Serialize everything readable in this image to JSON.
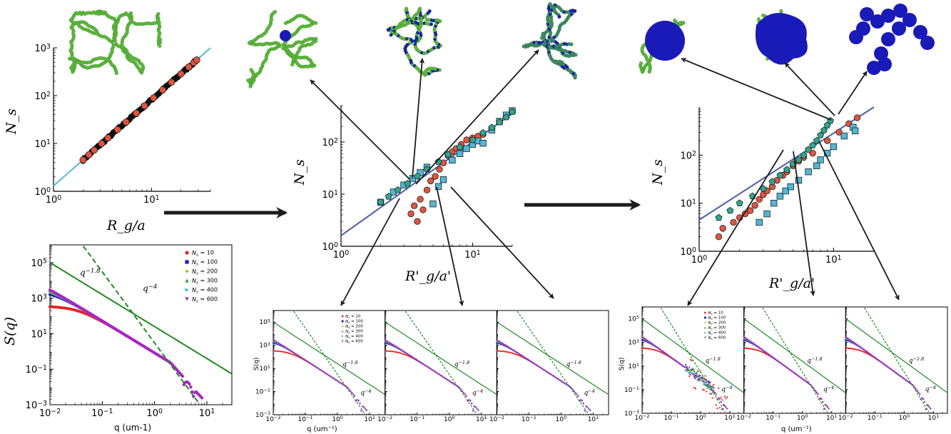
{
  "figure": {
    "panel_a": {
      "ylabel": "N_s",
      "xlabel": "R_g/a",
      "xticks": [
        "10^0",
        "10^1"
      ],
      "yticks": [
        "10^0",
        "10^1",
        "10^2",
        "10^3"
      ]
    },
    "panel_b": {
      "ylabel": "N_s",
      "xlabel": "R'_g/a'",
      "xticks": [
        "10^0",
        "10^1"
      ],
      "yticks": [
        "10^0",
        "10^1",
        "10^2"
      ]
    },
    "panel_c": {
      "ylabel": "N_s",
      "xlabel": "R'_g/a'",
      "xticks": [
        "10^0",
        "10^1"
      ],
      "yticks": [
        "10^0",
        "10^1",
        "10^2"
      ]
    },
    "scattering": {
      "ylabel": "S(q)",
      "xlabel": "q (um-1)",
      "xlabel_small": "q (um⁻¹)",
      "xticks": [
        "10^-2",
        "10^-1",
        "10^0",
        "10^1"
      ],
      "yticks": [
        "10^-3",
        "10^-1",
        "10^1",
        "10^3",
        "10^5"
      ],
      "slope_shallow": "q^-1.8",
      "slope_steep": "q^-4"
    },
    "legend": [
      "N_s = 10",
      "N_s = 100",
      "N_s = 200",
      "N_s = 300",
      "N_s = 400",
      "N_s = 600"
    ],
    "colors": {
      "series": [
        "#e8231e",
        "#1818e0",
        "#a6c41a",
        "#2a9c2a",
        "#19bfdc",
        "#b021c8"
      ],
      "fit_line": "#58b8d8",
      "fit_line_dark": "#4a5fa8",
      "circle_fill": "#e05440",
      "square_fill": "#52b6d6",
      "pentagon_fill": "#2ea690",
      "power_law": "#1f8a1f",
      "cluster": "#5dbb3c",
      "blob": "#1a1ab8"
    }
  },
  "chart_data": [
    {
      "type": "scatter",
      "panel": "a",
      "xlabel": "R_g/a",
      "ylabel": "N_s",
      "xscale": "log",
      "yscale": "log",
      "xlim": [
        1,
        40
      ],
      "ylim": [
        1,
        1000
      ],
      "series": [
        {
          "values": [
            [
              2.0,
              4
            ],
            [
              2.3,
              5
            ],
            [
              2.6,
              6
            ],
            [
              3.1,
              8
            ],
            [
              3.6,
              10
            ],
            [
              4.5,
              15
            ],
            [
              5.5,
              22
            ],
            [
              7,
              35
            ],
            [
              8.5,
              50
            ],
            [
              10.5,
              75
            ],
            [
              13,
              110
            ],
            [
              16,
              170
            ],
            [
              20,
              270
            ],
            [
              24,
              400
            ],
            [
              27,
              500
            ],
            [
              29,
              600
            ]
          ]
        }
      ],
      "fit": {
        "slope": 1.8,
        "intercept_at_x1": 1.3
      }
    },
    {
      "type": "scatter",
      "panel": "b",
      "xlabel": "R'_g/a'",
      "ylabel": "N_s",
      "xscale": "log",
      "yscale": "log",
      "xlim": [
        1,
        20
      ],
      "ylim": [
        1,
        500
      ],
      "series": [
        {
          "marker": "circle",
          "values": [
            [
              3.4,
              4.2
            ],
            [
              3.6,
              6
            ],
            [
              3.8,
              3
            ],
            [
              4.0,
              8
            ],
            [
              4.2,
              5
            ],
            [
              4.5,
              12
            ],
            [
              4.8,
              18
            ],
            [
              5.2,
              22
            ],
            [
              5.6,
              30
            ],
            [
              6.0,
              40
            ],
            [
              6.5,
              55
            ],
            [
              7.0,
              65
            ],
            [
              7.5,
              75
            ],
            [
              8.2,
              90
            ],
            [
              9,
              110
            ],
            [
              10,
              120
            ],
            [
              11,
              130
            ],
            [
              12,
              140
            ]
          ]
        },
        {
          "marker": "square",
          "values": [
            [
              2.0,
              7
            ],
            [
              2.5,
              11
            ],
            [
              3.0,
              15
            ],
            [
              3.5,
              20
            ],
            [
              4.0,
              26
            ],
            [
              4.5,
              33
            ],
            [
              5.0,
              6.5
            ],
            [
              5.5,
              14
            ],
            [
              6,
              19
            ],
            [
              7,
              45
            ],
            [
              8,
              60
            ],
            [
              9,
              75
            ],
            [
              10,
              90
            ],
            [
              11,
              105
            ],
            [
              12,
              95
            ],
            [
              14,
              170
            ],
            [
              16,
              250
            ],
            [
              18,
              330
            ],
            [
              20,
              400
            ]
          ]
        },
        {
          "marker": "pentagon",
          "values": [
            [
              2.0,
              7
            ],
            [
              2.3,
              9
            ],
            [
              2.7,
              12
            ],
            [
              3.2,
              16
            ],
            [
              3.8,
              22
            ],
            [
              4.5,
              30
            ],
            [
              5.5,
              42
            ],
            [
              6.5,
              58
            ],
            [
              8,
              80
            ],
            [
              10,
              110
            ],
            [
              12,
              150
            ],
            [
              14,
              190
            ],
            [
              16,
              240
            ],
            [
              18,
              300
            ],
            [
              20,
              380
            ]
          ]
        }
      ],
      "fit": {
        "slope": 1.8,
        "intercept_at_x1": 1.6
      }
    },
    {
      "type": "scatter",
      "panel": "c",
      "xlabel": "R'_g/a'",
      "ylabel": "N_s",
      "xscale": "log",
      "yscale": "log",
      "xlim": [
        1,
        20
      ],
      "ylim": [
        1,
        1000
      ],
      "series": [
        {
          "marker": "circle",
          "values": [
            [
              1.4,
              2
            ],
            [
              1.5,
              3
            ],
            [
              1.8,
              4
            ],
            [
              2.0,
              5
            ],
            [
              2.2,
              6
            ],
            [
              2.4,
              7
            ],
            [
              2.6,
              9
            ],
            [
              2.8,
              12
            ],
            [
              3.0,
              15
            ],
            [
              3.2,
              18
            ],
            [
              3.5,
              22
            ],
            [
              3.8,
              30
            ],
            [
              4.2,
              38
            ],
            [
              4.5,
              45
            ],
            [
              5,
              60
            ],
            [
              5.5,
              75
            ],
            [
              6,
              90
            ],
            [
              7,
              110
            ],
            [
              9,
              200
            ],
            [
              11,
              300
            ],
            [
              13,
              450
            ],
            [
              15,
              600
            ]
          ]
        },
        {
          "marker": "square",
          "values": [
            [
              2.8,
              4
            ],
            [
              3.2,
              6
            ],
            [
              3.6,
              10
            ],
            [
              4.0,
              14
            ],
            [
              4.4,
              18
            ],
            [
              4.8,
              22
            ],
            [
              5.5,
              30
            ],
            [
              6.5,
              45
            ],
            [
              7.5,
              60
            ],
            [
              8,
              80
            ],
            [
              9,
              110
            ],
            [
              10,
              150
            ],
            [
              12,
              250
            ],
            [
              14,
              380
            ],
            [
              14.5,
              320
            ]
          ]
        },
        {
          "marker": "pentagon",
          "values": [
            [
              1.4,
              5
            ],
            [
              1.7,
              7
            ],
            [
              2.0,
              10
            ],
            [
              2.5,
              14
            ],
            [
              3,
              20
            ],
            [
              3.5,
              28
            ],
            [
              4,
              38
            ],
            [
              4.5,
              50
            ],
            [
              5,
              65
            ],
            [
              5.5,
              80
            ],
            [
              6,
              100
            ],
            [
              6.5,
              130
            ],
            [
              7,
              160
            ],
            [
              7.5,
              200
            ],
            [
              8,
              260
            ],
            [
              8.5,
              330
            ],
            [
              9,
              420
            ],
            [
              9.5,
              520
            ]
          ]
        }
      ],
      "fit": {
        "slope": 2.2,
        "intercept_at_x1": 4.5
      }
    },
    {
      "type": "line",
      "panel": "d",
      "xlabel": "q (um-1)",
      "ylabel": "S(q)",
      "xscale": "log",
      "yscale": "log",
      "xlim": [
        0.01,
        30
      ],
      "ylim": [
        0.001,
        1000000
      ],
      "series": [
        {
          "name": "N_s = 10",
          "plateau": 350
        },
        {
          "name": "N_s = 100",
          "plateau": 2800
        },
        {
          "name": "N_s = 200",
          "plateau": 5500
        },
        {
          "name": "N_s = 300",
          "plateau": 8500
        },
        {
          "name": "N_s = 400",
          "plateau": 12000
        },
        {
          "name": "N_s = 600",
          "plateau": 17000
        }
      ]
    }
  ]
}
